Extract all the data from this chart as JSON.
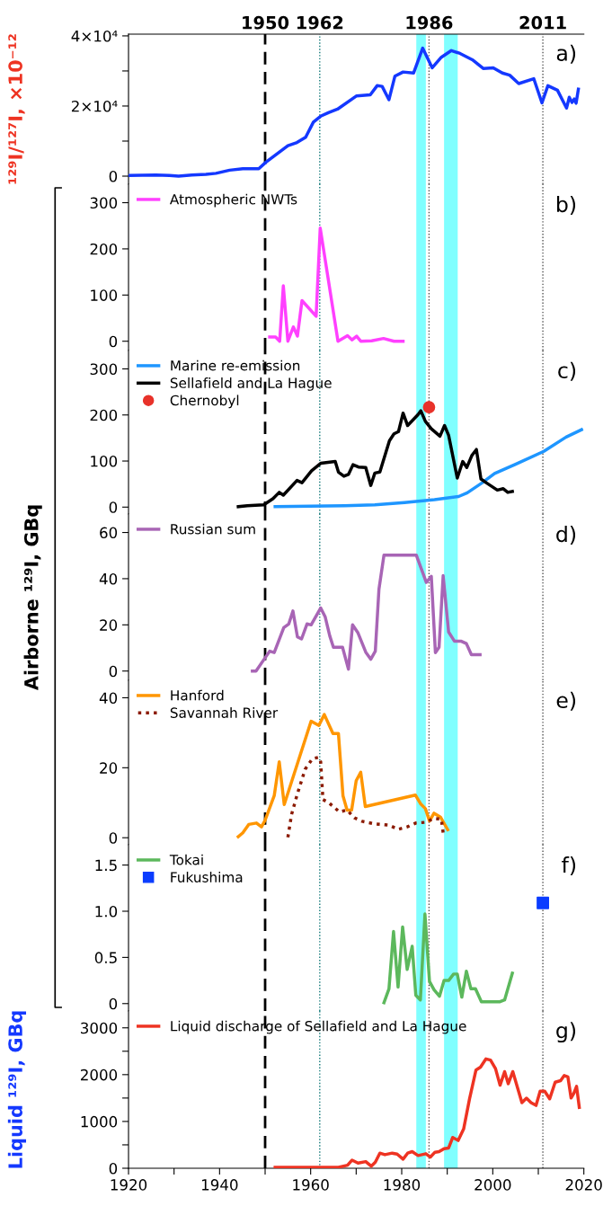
{
  "chart_data": [
    {
      "type": "line",
      "ylabel": "¹²⁹I/¹²⁷I, ×10⁻¹²",
      "xlim": [
        1920,
        2020
      ],
      "ylim": [
        -2300,
        40500
      ],
      "yticks": [
        0,
        {
          "value": 10000,
          "label": null
        },
        {
          "value": 20000,
          "label": "2×10⁴"
        },
        {
          "value": 30000,
          "label": null
        },
        {
          "value": 40000,
          "label": "4×10⁴"
        }
      ],
      "tick_labels": "y",
      "annotations": [
        "a)"
      ],
      "ref_lines": [
        {
          "axis": "x",
          "value": 1950,
          "label": "1950",
          "color": "#000000",
          "line_style": "dashed"
        },
        {
          "axis": "x",
          "value": 1962,
          "label": "1962",
          "color": "#107878",
          "line_style": "dotted"
        },
        {
          "axis": "x",
          "value": 1986,
          "label": "1986",
          "color": "#555555",
          "line_style": "dotted"
        },
        {
          "axis": "x",
          "value": 2011,
          "label": "2011",
          "color": "#555555",
          "line_style": "dotted"
        }
      ],
      "bands": [
        {
          "axis": "x",
          "from": 1983.2,
          "to": 1985.3,
          "color": "#80ffff"
        },
        {
          "axis": "x",
          "from": 1989.3,
          "to": 1992.3,
          "color": "#80ffff"
        }
      ],
      "series": [
        {
          "color": "#1438ff",
          "x": [
            1920,
            1926,
            1929,
            1931,
            1933.9,
            1937,
            1939.2,
            1942.2,
            1945.1,
            1948.6,
            1950.2,
            1955,
            1957,
            1958.9,
            1960.6,
            1962.2,
            1963.9,
            1965.9,
            1970.1,
            1973.1,
            1974.6,
            1975.7,
            1977.2,
            1978.5,
            1980.3,
            1982.6,
            1984.6,
            1986.7,
            1988.7,
            1990.9,
            1992.8,
            1995.5,
            1997.9,
            2000.1,
            2002.1,
            2003.7,
            2005.7,
            2009,
            2010.8,
            2012.1,
            2014.2,
            2016.2,
            2016.8,
            2017.4,
            2017.9,
            2018.3,
            2018.8
          ],
          "values": [
            200,
            300,
            200,
            0,
            300,
            500,
            800,
            1700,
            2100,
            2100,
            4000,
            8700,
            9600,
            11100,
            15400,
            17100,
            18100,
            19100,
            22900,
            23200,
            25800,
            25600,
            21800,
            28500,
            29700,
            29400,
            36500,
            30900,
            33900,
            35800,
            35000,
            33200,
            30700,
            30900,
            29400,
            28800,
            26400,
            27800,
            20900,
            25800,
            24500,
            19400,
            22500,
            21000,
            22000,
            20800,
            24800
          ]
        }
      ]
    },
    {
      "type": "line",
      "xlim": [
        1920,
        2020
      ],
      "ylim": [
        -20,
        340
      ],
      "yticks": [
        0,
        100,
        200,
        300
      ],
      "tick_labels": "y",
      "annotations": [
        "b)"
      ],
      "legend": "top left",
      "ref_lines": [
        {
          "axis": "x",
          "value": 1950,
          "color": "#000000",
          "line_style": "dashed"
        },
        {
          "axis": "x",
          "value": 1962,
          "color": "#107878",
          "line_style": "dotted"
        },
        {
          "axis": "x",
          "value": 1986,
          "color": "#555555",
          "line_style": "dotted"
        },
        {
          "axis": "x",
          "value": 2011,
          "color": "#555555",
          "line_style": "dotted"
        }
      ],
      "bands": [
        {
          "axis": "x",
          "from": 1983.2,
          "to": 1985.3,
          "color": "#80ffff"
        },
        {
          "axis": "x",
          "from": 1989.3,
          "to": 1992.3,
          "color": "#80ffff"
        }
      ],
      "series": [
        {
          "name": "Atmospheric NWTs",
          "color": "#ff40ff",
          "x": [
            1951,
            1952.3,
            1953.2,
            1954,
            1955,
            1956.2,
            1957.1,
            1958.1,
            1961.2,
            1962.1,
            1966,
            1968.1,
            1969.1,
            1970.1,
            1971,
            1973.4,
            1976,
            1978.3,
            1980.3
          ],
          "values": [
            9,
            9,
            0,
            120,
            0,
            31,
            11,
            88,
            54,
            245,
            0,
            12,
            3,
            11,
            0,
            1,
            6,
            0,
            0
          ]
        }
      ]
    },
    {
      "type": "line",
      "xlim": [
        1920,
        2020
      ],
      "ylim": [
        -15,
        340
      ],
      "yticks": [
        0,
        100,
        200,
        300
      ],
      "tick_labels": "y",
      "annotations": [
        "c)"
      ],
      "legend": "top left",
      "ref_lines": [
        {
          "axis": "x",
          "value": 1950,
          "color": "#000000",
          "line_style": "dashed"
        },
        {
          "axis": "x",
          "value": 1962,
          "color": "#107878",
          "line_style": "dotted"
        },
        {
          "axis": "x",
          "value": 1986,
          "color": "#555555",
          "line_style": "dotted"
        },
        {
          "axis": "x",
          "value": 2011,
          "color": "#555555",
          "line_style": "dotted"
        }
      ],
      "bands": [
        {
          "axis": "x",
          "from": 1983.2,
          "to": 1985.3,
          "color": "#80ffff"
        },
        {
          "axis": "x",
          "from": 1989.3,
          "to": 1992.3,
          "color": "#80ffff"
        }
      ],
      "series": [
        {
          "name": "Marine re-emission",
          "color": "#1e96ff",
          "x": [
            1952.2,
            1967.5,
            1974.1,
            1980.6,
            1987.2,
            1992.5,
            1994.4,
            1997.7,
            2000.4,
            2005,
            2011.2,
            2016.1,
            2019.5
          ],
          "values": [
            1,
            3,
            5,
            10,
            16,
            23,
            31,
            53,
            73,
            93,
            121,
            152,
            168
          ]
        },
        {
          "name": "Sellafield and La Hague",
          "color": "#000000",
          "x": [
            1944.1,
            1946.1,
            1949.7,
            1951.7,
            1953.1,
            1954,
            1957,
            1958.1,
            1960.2,
            1962.2,
            1965.4,
            1966.1,
            1967.3,
            1968.3,
            1969.3,
            1970.5,
            1972.1,
            1973.2,
            1974.1,
            1975.2,
            1977.3,
            1978.3,
            1979.3,
            1980.3,
            1981.3,
            1983.6,
            1984.2,
            1985.2,
            1986.5,
            1988.4,
            1989.4,
            1990.3,
            1992.2,
            1993.4,
            1994.3,
            1995.4,
            1996.4,
            1997.4,
            1998.7,
            2001,
            2002.3,
            2003.3,
            2004.3
          ],
          "values": [
            1,
            3,
            5,
            18,
            32,
            26,
            58,
            53,
            79,
            95,
            99,
            76,
            67,
            71,
            92,
            87,
            86,
            47,
            74,
            76,
            144,
            159,
            164,
            204,
            177,
            201,
            209,
            186,
            170,
            154,
            177,
            156,
            63,
            99,
            86,
            112,
            125,
            61,
            52,
            37,
            40,
            32,
            34
          ]
        },
        {
          "name": "Chernobyl",
          "type": "scatter",
          "marker": "circle",
          "color": "#e8322a",
          "x": [
            1986
          ],
          "values": [
            217
          ]
        }
      ]
    },
    {
      "type": "line",
      "ylabel": "Airborne ¹²⁹I, GBq",
      "xlim": [
        1920,
        2020
      ],
      "ylim": [
        -4,
        68
      ],
      "yticks": [
        0,
        20,
        40,
        60
      ],
      "tick_labels": "y",
      "annotations": [
        "d)"
      ],
      "legend": "top left",
      "ref_lines": [
        {
          "axis": "x",
          "value": 1950,
          "color": "#000000",
          "line_style": "dashed"
        },
        {
          "axis": "x",
          "value": 1962,
          "color": "#107878",
          "line_style": "dotted"
        },
        {
          "axis": "x",
          "value": 1986,
          "color": "#555555",
          "line_style": "dotted"
        },
        {
          "axis": "x",
          "value": 2011,
          "color": "#555555",
          "line_style": "dotted"
        }
      ],
      "bands": [
        {
          "axis": "x",
          "from": 1983.2,
          "to": 1985.3,
          "color": "#80ffff"
        },
        {
          "axis": "x",
          "from": 1989.3,
          "to": 1992.3,
          "color": "#80ffff"
        }
      ],
      "series": [
        {
          "name": "Russian sum",
          "color": "#a865b5",
          "x": [
            1947.2,
            1948,
            1951,
            1952,
            1954.1,
            1955.2,
            1956.1,
            1957.1,
            1958,
            1959.2,
            1960.1,
            1962.2,
            1963.2,
            1964.2,
            1965,
            1967,
            1968.3,
            1969.2,
            1970.4,
            1972.1,
            1973.2,
            1974.2,
            1975,
            1976.1,
            1982.2,
            1983.2,
            1985.4,
            1986.5,
            1987.4,
            1988.2,
            1989.1,
            1990.3,
            1991.6,
            1993.1,
            1994.2,
            1995.3,
            1997.2
          ],
          "values": [
            0,
            0,
            8.6,
            8,
            18.8,
            20.4,
            26,
            14.8,
            13.9,
            20.4,
            20,
            27.3,
            23.4,
            15.2,
            10.3,
            10.3,
            0.8,
            20,
            16.5,
            8.2,
            5.1,
            8.6,
            35.4,
            50.2,
            50.2,
            50.2,
            38.4,
            41,
            8,
            10.3,
            41.3,
            16.9,
            12.9,
            12.9,
            11.9,
            7.1,
            7.1
          ]
        }
      ]
    },
    {
      "type": "line",
      "xlim": [
        1920,
        2020
      ],
      "ylim": [
        -2,
        45
      ],
      "yticks": [
        0,
        20,
        40
      ],
      "tick_labels": "y",
      "annotations": [
        "e)"
      ],
      "legend": "top left",
      "ref_lines": [
        {
          "axis": "x",
          "value": 1950,
          "color": "#000000",
          "line_style": "dashed"
        },
        {
          "axis": "x",
          "value": 1962,
          "color": "#107878",
          "line_style": "dotted"
        },
        {
          "axis": "x",
          "value": 1986,
          "color": "#555555",
          "line_style": "dotted"
        },
        {
          "axis": "x",
          "value": 2011,
          "color": "#555555",
          "line_style": "dotted"
        }
      ],
      "bands": [
        {
          "axis": "x",
          "from": 1983.2,
          "to": 1985.3,
          "color": "#80ffff"
        },
        {
          "axis": "x",
          "from": 1989.3,
          "to": 1992.3,
          "color": "#80ffff"
        }
      ],
      "series": [
        {
          "name": "Hanford",
          "color": "#ff9600",
          "x": [
            1944.1,
            1945.1,
            1946.4,
            1948.1,
            1949.2,
            1950,
            1952,
            1953.1,
            1954.2,
            1960.1,
            1961.8,
            1963,
            1964.9,
            1966.1,
            1967.1,
            1968,
            1969,
            1970,
            1971,
            1972,
            1983,
            1984.2,
            1985.2,
            1986.1,
            1987.1,
            1988.5,
            1990.1
          ],
          "values": [
            0.3,
            1.4,
            3.8,
            4.2,
            3.1,
            5,
            12,
            21.7,
            9.5,
            33.3,
            32.1,
            35.2,
            29.8,
            29.8,
            12,
            7.9,
            7.9,
            16.3,
            18.7,
            8.9,
            12.2,
            9.6,
            8.3,
            4.8,
            7,
            5.9,
            2.3
          ]
        },
        {
          "name": "Savannah River",
          "color": "#8b1a00",
          "line_style": "dotted",
          "x": [
            1955,
            1955.8,
            1957.1,
            1958.8,
            1960.4,
            1961.8,
            1962.2,
            1962.7,
            1964,
            1966.3,
            1968,
            1969.6,
            1971.3,
            1973.9,
            1977.2,
            1979.2,
            1981.2,
            1983.1,
            1985.1,
            1987.1,
            1988.7,
            1989.2
          ],
          "values": [
            0.1,
            6.6,
            12.6,
            19.6,
            22.6,
            23,
            21.7,
            10.9,
            10,
            7.4,
            7.9,
            5.7,
            4.7,
            4,
            3.6,
            2.4,
            3.1,
            4.2,
            4.4,
            5.5,
            5.3,
            0.5
          ]
        }
      ]
    },
    {
      "type": "line",
      "xlim": [
        1920,
        2020
      ],
      "ylim": [
        -0.08,
        1.72
      ],
      "yticks": [
        0,
        0.5,
        {
          "value": 1,
          "label": "1.0"
        },
        1.5
      ],
      "tick_labels": "y",
      "annotations": [
        "f)"
      ],
      "legend": "top left",
      "ref_lines": [
        {
          "axis": "x",
          "value": 1950,
          "color": "#000000",
          "line_style": "dashed"
        },
        {
          "axis": "x",
          "value": 1962,
          "color": "#107878",
          "line_style": "dotted"
        },
        {
          "axis": "x",
          "value": 1986,
          "color": "#555555",
          "line_style": "dotted"
        },
        {
          "axis": "x",
          "value": 2011,
          "color": "#555555",
          "line_style": "dotted"
        }
      ],
      "bands": [
        {
          "axis": "x",
          "from": 1983.2,
          "to": 1985.3,
          "color": "#80ffff"
        },
        {
          "axis": "x",
          "from": 1989.3,
          "to": 1992.3,
          "color": "#80ffff"
        }
      ],
      "series": [
        {
          "name": "Tokai",
          "color": "#5cb85c",
          "x": [
            1976.1,
            1977.2,
            1978.2,
            1979.2,
            1980.2,
            1981.2,
            1982.3,
            1983.1,
            1984.1,
            1985.1,
            1986.1,
            1987.1,
            1988.3,
            1989.3,
            1990.3,
            1991.4,
            1992.2,
            1993.2,
            1994.2,
            1995.2,
            1996.2,
            1997.5,
            2001.6,
            2002.6,
            2004.3
          ],
          "values": [
            0.01,
            0.16,
            0.78,
            0.18,
            0.83,
            0.37,
            0.62,
            0.09,
            0.04,
            0.97,
            0.24,
            0.15,
            0.08,
            0.25,
            0.25,
            0.32,
            0.32,
            0.07,
            0.35,
            0.16,
            0.16,
            0.02,
            0.02,
            0.04,
            0.33
          ]
        },
        {
          "name": "Fukushima",
          "type": "scatter",
          "marker": "square",
          "color": "#0a3cff",
          "x": [
            2011
          ],
          "values": [
            1.09
          ]
        }
      ]
    },
    {
      "type": "line",
      "ylabel": "Liquid ¹²⁹I, GBq",
      "xlim": [
        1920,
        2020
      ],
      "ylim": [
        0,
        3360
      ],
      "xticks": [
        1920,
        {
          "value": 1930,
          "label": null
        },
        1940,
        {
          "value": 1950,
          "label": null
        },
        1960,
        {
          "value": 1970,
          "label": null
        },
        1980,
        {
          "value": 1990,
          "label": null
        },
        2000,
        {
          "value": 2010,
          "label": null
        },
        2020
      ],
      "yticks": [
        0,
        {
          "value": 500,
          "label": null
        },
        1000,
        {
          "value": 1500,
          "label": null
        },
        2000,
        {
          "value": 2500,
          "label": null
        },
        3000
      ],
      "annotations": [
        "g)"
      ],
      "legend": "top left",
      "ref_lines": [
        {
          "axis": "x",
          "value": 1950,
          "color": "#000000",
          "line_style": "dashed"
        },
        {
          "axis": "x",
          "value": 1962,
          "color": "#107878",
          "line_style": "dotted"
        },
        {
          "axis": "x",
          "value": 1986,
          "color": "#555555",
          "line_style": "dotted"
        },
        {
          "axis": "x",
          "value": 2011,
          "color": "#555555",
          "line_style": "dotted"
        }
      ],
      "bands": [
        {
          "axis": "x",
          "from": 1983.2,
          "to": 1985.3,
          "color": "#80ffff"
        },
        {
          "axis": "x",
          "from": 1989.3,
          "to": 1992.3,
          "color": "#80ffff"
        }
      ],
      "series": [
        {
          "name": "Liquid discharge of Sellafield and La Hague",
          "color": "#ee3322",
          "x": [
            1952.2,
            1966.1,
            1968.1,
            1969.1,
            1970.4,
            1972.1,
            1973.3,
            1974.2,
            1975.2,
            1976.3,
            1977.9,
            1979,
            1980.3,
            1981.3,
            1982.3,
            1983.6,
            1985.3,
            1986.3,
            1987.3,
            1988.2,
            1989.3,
            1990.3,
            1991.2,
            1992.4,
            1993.6,
            1994.9,
            1996.3,
            1997.3,
            1998.5,
            1999.5,
            2000.6,
            2001.6,
            2002.6,
            2003.4,
            2004.4,
            2006.4,
            2007.4,
            2008.4,
            2009.5,
            2010.4,
            2011.4,
            2012.5,
            2013.7,
            2014.9,
            2015.7,
            2016.5,
            2017.2,
            2017.8,
            2018.4,
            2019
          ],
          "values": [
            19,
            19,
            65,
            174,
            110,
            142,
            45,
            129,
            323,
            290,
            323,
            303,
            194,
            323,
            355,
            271,
            310,
            239,
            342,
            355,
            419,
            432,
            658,
            594,
            839,
            1484,
            2097,
            2161,
            2336,
            2310,
            2129,
            1774,
            2065,
            1806,
            2065,
            1400,
            1497,
            1400,
            1342,
            1645,
            1645,
            1484,
            1839,
            1871,
            1981,
            1950,
            1500,
            1600,
            1750,
            1300
          ]
        }
      ]
    }
  ]
}
